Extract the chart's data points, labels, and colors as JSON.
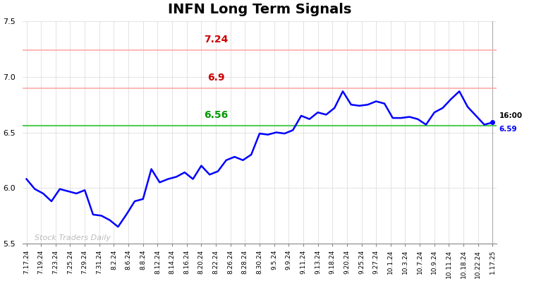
{
  "title": "INFN Long Term Signals",
  "title_fontsize": 14,
  "title_fontweight": "bold",
  "line_color": "blue",
  "line_width": 1.8,
  "background_color": "#ffffff",
  "plot_bg_color": "#ffffff",
  "hline_green": 6.56,
  "hline_green_color": "#55cc55",
  "hline_green_lw": 1.5,
  "hline_red1": 6.9,
  "hline_red1_color": "#ffaaaa",
  "hline_red1_lw": 1.2,
  "hline_red2": 7.24,
  "hline_red2_color": "#ffaaaa",
  "hline_red2_lw": 1.2,
  "label_724": "7.24",
  "label_690": "6.9",
  "label_656": "6.56",
  "label_red_color": "#cc0000",
  "label_green_color": "#009900",
  "label_fontsize": 10,
  "last_price": "6.59",
  "last_price_color": "blue",
  "last_time_label": "16:00",
  "watermark": "Stock Traders Daily",
  "watermark_color": "#bbbbbb",
  "ylim": [
    5.5,
    7.5
  ],
  "yticks": [
    5.5,
    6.0,
    6.5,
    7.0,
    7.5
  ],
  "x_labels": [
    "7.17.24",
    "7.19.24",
    "7.23.24",
    "7.25.24",
    "7.29.24",
    "7.31.24",
    "8.2.24",
    "8.6.24",
    "8.8.24",
    "8.12.24",
    "8.14.24",
    "8.16.24",
    "8.20.24",
    "8.22.24",
    "8.26.24",
    "8.28.24",
    "8.30.24",
    "9.5.24",
    "9.9.24",
    "9.11.24",
    "9.13.24",
    "9.18.24",
    "9.20.24",
    "9.25.24",
    "9.27.24",
    "10.1.24",
    "10.3.24",
    "10.7.24",
    "10.9.24",
    "10.11.24",
    "10.18.24",
    "10.22.24",
    "1.17.25"
  ],
  "y_values": [
    6.08,
    5.99,
    5.95,
    5.88,
    5.99,
    5.97,
    5.95,
    5.98,
    5.76,
    5.75,
    5.71,
    5.65,
    5.76,
    5.88,
    5.9,
    6.17,
    6.05,
    6.08,
    6.1,
    6.14,
    6.08,
    6.2,
    6.12,
    6.15,
    6.25,
    6.28,
    6.25,
    6.3,
    6.49,
    6.48,
    6.5,
    6.49,
    6.52,
    6.65,
    6.62,
    6.68,
    6.66,
    6.72,
    6.87,
    6.75,
    6.74,
    6.75,
    6.78,
    6.76,
    6.63,
    6.63,
    6.64,
    6.62,
    6.57,
    6.68,
    6.72,
    6.8,
    6.87,
    6.73,
    6.65,
    6.57,
    6.59
  ]
}
